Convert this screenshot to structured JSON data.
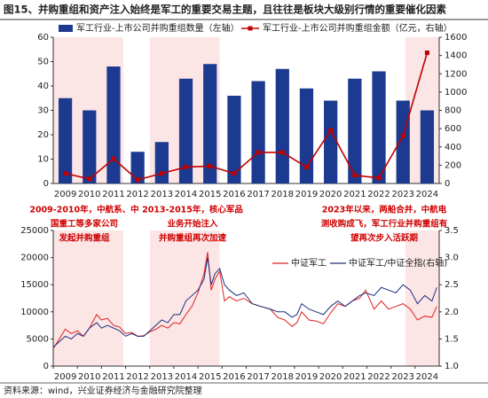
{
  "title": "图15、并购重组和资产注入始终是军工的重要交易主题，且往往是板块大级别行情的重要催化因素",
  "source": "资料来源：wind，兴业证券经济与金融研究院整理",
  "chart_data": [
    {
      "type": "bar",
      "categories": [
        "2009",
        "2010",
        "2011",
        "2012",
        "2013",
        "2014",
        "2015",
        "2016",
        "2017",
        "2018",
        "2019",
        "2020",
        "2021",
        "2022",
        "2023",
        "2024"
      ],
      "series": [
        {
          "name": "军工行业-上市公司并购重组数量（左轴）",
          "color": "#1c3a8f",
          "values": [
            35,
            30,
            48,
            13,
            17,
            43,
            49,
            36,
            42,
            47,
            39,
            34,
            43,
            46,
            34,
            30
          ]
        },
        {
          "name": "军工行业-上市公司并购重组金额（亿元，右轴）",
          "type": "line",
          "axis": "y2",
          "color": "#c00000",
          "values": [
            110,
            50,
            270,
            40,
            110,
            180,
            190,
            110,
            340,
            340,
            180,
            580,
            90,
            60,
            520,
            1430
          ]
        }
      ],
      "ylim": [
        0,
        60
      ],
      "yticks": [
        0,
        10,
        20,
        30,
        40,
        50,
        60
      ],
      "y2lim": [
        0,
        1600
      ],
      "y2ticks": [
        0,
        200,
        400,
        600,
        800,
        1000,
        1200,
        1400,
        1600
      ],
      "shaded_periods": [
        [
          2009,
          2011.9
        ],
        [
          2013,
          2015.9
        ],
        [
          2023.6,
          2025
        ]
      ],
      "shade_color": "#fbe5e5"
    },
    {
      "type": "line",
      "x": [
        2009.0,
        2009.25,
        2009.5,
        2009.75,
        2010.0,
        2010.25,
        2010.5,
        2010.8,
        2011.0,
        2011.25,
        2011.5,
        2011.75,
        2012.0,
        2012.25,
        2012.5,
        2012.75,
        2013.0,
        2013.25,
        2013.5,
        2013.75,
        2014.0,
        2014.25,
        2014.5,
        2014.75,
        2015.0,
        2015.25,
        2015.4,
        2015.55,
        2015.7,
        2015.9,
        2016.1,
        2016.3,
        2016.6,
        2016.9,
        2017.25,
        2017.6,
        2018.0,
        2018.3,
        2018.6,
        2018.9,
        2019.1,
        2019.3,
        2019.6,
        2019.9,
        2020.2,
        2020.5,
        2020.8,
        2021.1,
        2021.4,
        2021.7,
        2021.95,
        2022.3,
        2022.6,
        2022.9,
        2023.2,
        2023.5,
        2023.8,
        2024.1,
        2024.4,
        2024.7,
        2024.9
      ],
      "series": [
        {
          "name": "中证军工",
          "color": "#e02020",
          "values": [
            3200,
            5000,
            6800,
            6000,
            6500,
            5500,
            7000,
            9500,
            8500,
            8800,
            7500,
            7200,
            6000,
            6200,
            5500,
            5600,
            6300,
            6800,
            7500,
            7000,
            8000,
            7800,
            9500,
            11000,
            13500,
            17000,
            21000,
            14000,
            16000,
            17500,
            12000,
            12800,
            12000,
            12500,
            11500,
            11000,
            10500,
            9000,
            8500,
            7300,
            8000,
            10000,
            8500,
            8300,
            7800,
            9800,
            11500,
            11000,
            12000,
            12500,
            14000,
            10500,
            12000,
            10500,
            11000,
            11500,
            10500,
            8500,
            9200,
            9000,
            11000
          ]
        },
        {
          "name": "中证军工/中证全指(右轴)",
          "axis": "y2",
          "color": "#1c2f80",
          "values": [
            1.35,
            1.45,
            1.55,
            1.5,
            1.6,
            1.55,
            1.7,
            1.8,
            1.7,
            1.75,
            1.7,
            1.65,
            1.55,
            1.6,
            1.55,
            1.55,
            1.65,
            1.75,
            1.85,
            1.8,
            1.95,
            1.95,
            2.2,
            2.3,
            2.4,
            2.6,
            3.0,
            2.5,
            2.7,
            2.8,
            2.5,
            2.4,
            2.3,
            2.35,
            2.15,
            2.1,
            2.05,
            2.0,
            2.0,
            1.9,
            1.95,
            2.15,
            2.05,
            2.0,
            1.95,
            2.1,
            2.2,
            2.1,
            2.2,
            2.3,
            2.35,
            2.3,
            2.45,
            2.4,
            2.35,
            2.5,
            2.4,
            2.15,
            2.3,
            2.2,
            2.45
          ]
        }
      ],
      "xlim": [
        2009,
        2025
      ],
      "xticks": [
        2009,
        2010,
        2011,
        2012,
        2013,
        2014,
        2015,
        2016,
        2017,
        2018,
        2019,
        2020,
        2021,
        2022,
        2023,
        2024
      ],
      "ylim": [
        0,
        25000
      ],
      "yticks": [
        0,
        5000,
        10000,
        15000,
        20000,
        25000
      ],
      "y2lim": [
        1,
        3.5
      ],
      "y2ticks": [
        {
          "value": 1,
          "label": "1.0"
        },
        {
          "value": 1.5,
          "label": "1.5"
        },
        {
          "value": 2,
          "label": "2.0"
        },
        {
          "value": 2.5,
          "label": "2.5"
        },
        {
          "value": 3,
          "label": "3.0"
        },
        {
          "value": 3.5,
          "label": "3.5"
        }
      ],
      "shaded_periods": [
        [
          2009,
          2011.9
        ],
        [
          2013,
          2015.9
        ],
        [
          2023.6,
          2025
        ]
      ],
      "shade_color": "#fbe5e5",
      "annotations": [
        {
          "color": "#d00000",
          "lines": [
            "2009-2010年，中航系、中",
            "国重工等多家公司",
            "发起并购重组"
          ]
        },
        {
          "color": "#d00000",
          "lines": [
            "2013-2015年，核心军品",
            "业务开始注入",
            "并购重组再次加速"
          ]
        },
        {
          "color": "#d00000",
          "lines": [
            "2023年以来，两船合并，中航电",
            "测收购成飞，军工行业并购重组有",
            "望再次步入活跃期"
          ]
        }
      ]
    }
  ]
}
